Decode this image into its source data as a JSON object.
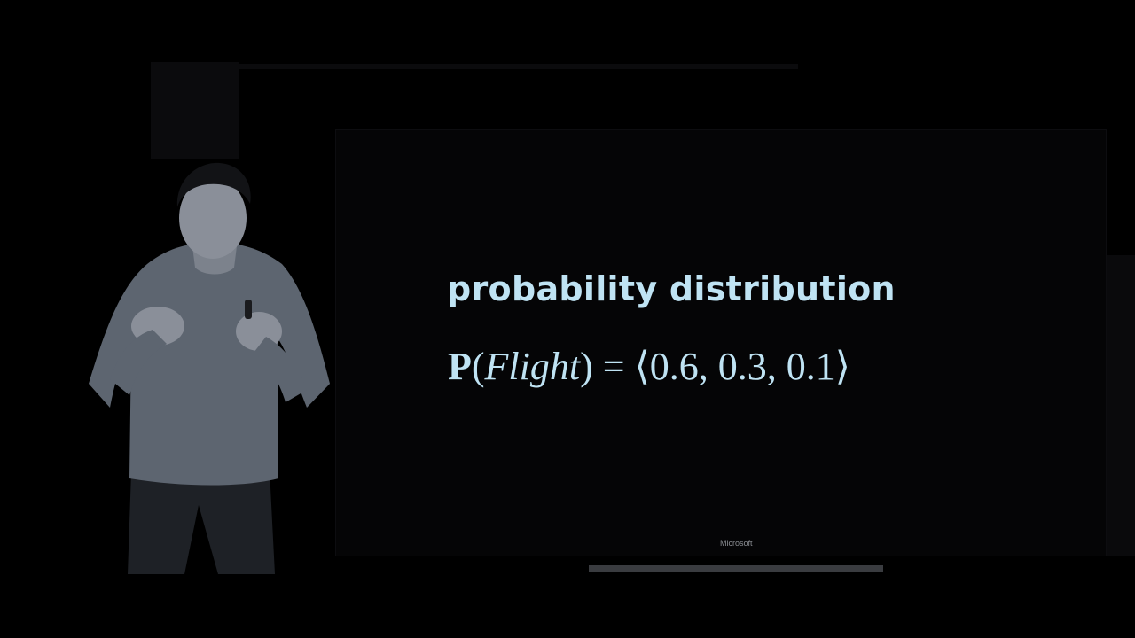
{
  "slide": {
    "heading": "probability distribution",
    "formula": {
      "function": "P",
      "open_paren": "(",
      "variable": "Flight",
      "rest": ") = ⟨0.6, 0.3, 0.1⟩"
    },
    "watermark": "Microsoft"
  },
  "colors": {
    "background": "#000000",
    "slide_text": "#bfe3f3",
    "sweater": "#5d6570",
    "skin": "#8a8f99",
    "hair": "#121316",
    "pants": "#1e2126"
  },
  "icons": [
    "presenter-figure"
  ]
}
